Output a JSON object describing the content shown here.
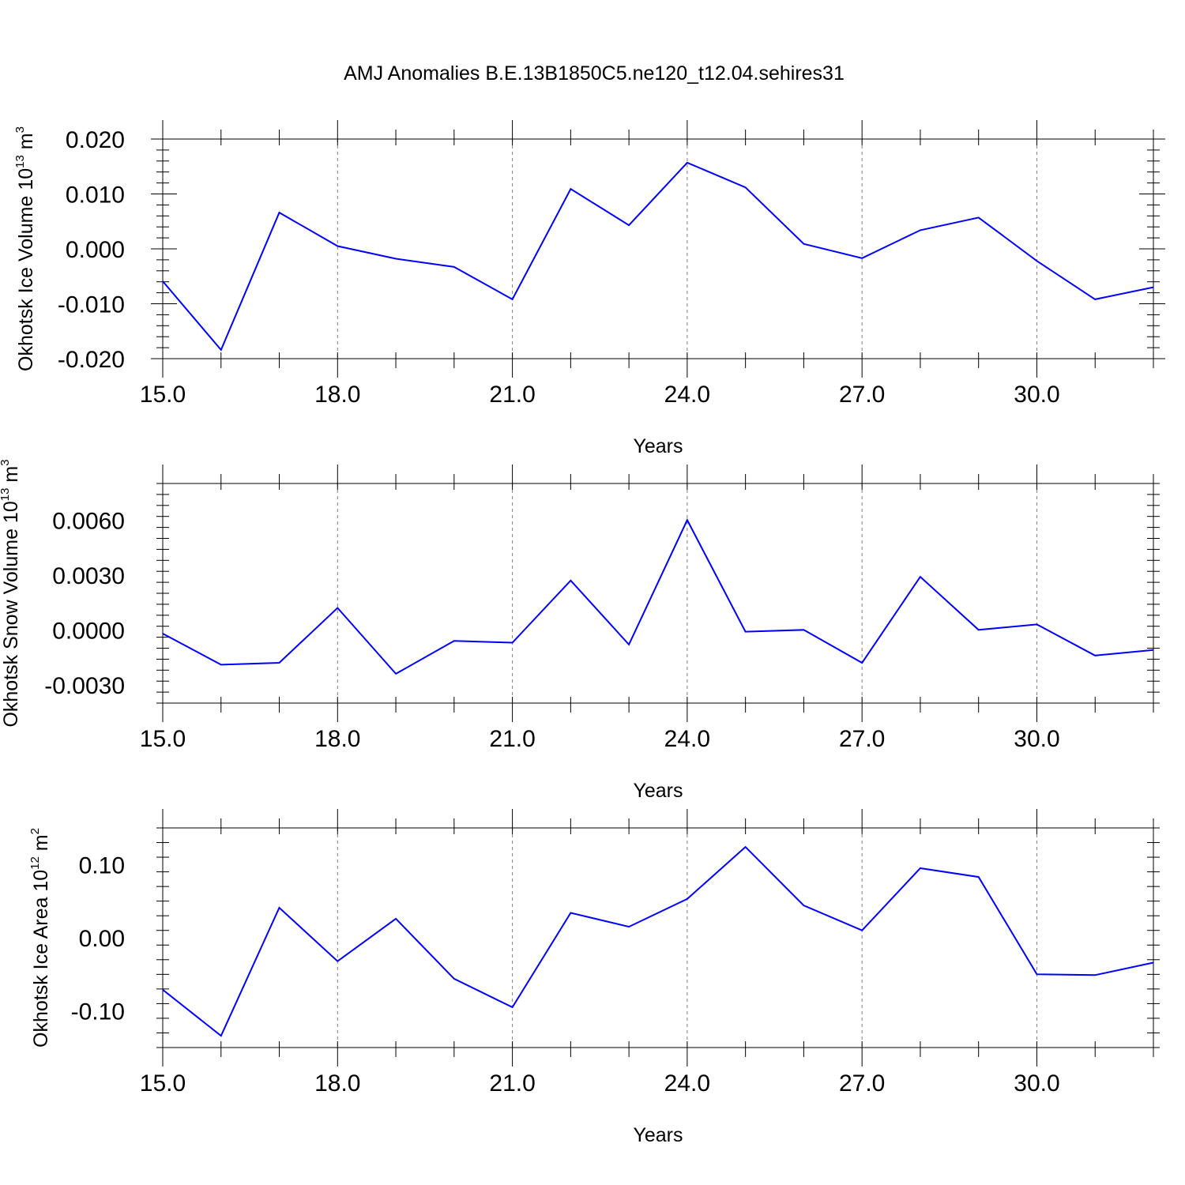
{
  "title": "AMJ Anomalies B.E.13B1850C5.ne120_t12.04.sehires31",
  "colors": {
    "series": "#0000ff",
    "axes": "#000000",
    "grid": "#808080",
    "background": "#ffffff"
  },
  "chart_data": [
    {
      "type": "line",
      "ylabel_main": "Okhotsk Ice Volume 10",
      "ylabel_exp": "13",
      "ylabel_unit": " m",
      "ylabel_unit_exp": "3",
      "xlabel": "Years",
      "xlim": [
        15,
        32
      ],
      "ylim": [
        -0.02,
        0.02
      ],
      "x_ticks": [
        15,
        18,
        21,
        24,
        27,
        30
      ],
      "x_tick_labels": [
        "15.0",
        "18.0",
        "21.0",
        "24.0",
        "27.0",
        "30.0"
      ],
      "y_ticks": [
        -0.02,
        -0.01,
        0.0,
        0.01,
        0.02
      ],
      "y_tick_labels": [
        "-0.020",
        "-0.010",
        "0.000",
        "0.010",
        "0.020"
      ],
      "grid": "vertical dashed at major x ticks",
      "x": [
        15,
        16,
        17,
        18,
        19,
        20,
        21,
        22,
        23,
        24,
        25,
        26,
        27,
        28,
        29,
        30,
        31,
        32
      ],
      "values": [
        -0.0059,
        -0.0184,
        0.0066,
        0.0005,
        -0.0018,
        -0.0033,
        -0.0092,
        0.0109,
        0.0043,
        0.0157,
        0.0112,
        0.0009,
        -0.0017,
        0.0034,
        0.0057,
        -0.0022,
        -0.0092,
        -0.007
      ]
    },
    {
      "type": "line",
      "ylabel_main": "Okhotsk Snow Volume 10",
      "ylabel_exp": "13",
      "ylabel_unit": " m",
      "ylabel_unit_exp": "3",
      "xlabel": "Years",
      "xlim": [
        15,
        32
      ],
      "ylim": [
        -0.004,
        0.008
      ],
      "x_ticks": [
        15,
        18,
        21,
        24,
        27,
        30
      ],
      "x_tick_labels": [
        "15.0",
        "18.0",
        "21.0",
        "24.0",
        "27.0",
        "30.0"
      ],
      "y_ticks": [
        -0.003,
        0.0,
        0.003,
        0.006
      ],
      "y_tick_labels": [
        "-0.0030",
        "0.0000",
        "0.0030",
        "0.0060"
      ],
      "grid": "vertical dashed at major x ticks",
      "x": [
        15,
        16,
        17,
        18,
        19,
        20,
        21,
        22,
        23,
        24,
        25,
        26,
        27,
        28,
        29,
        30,
        31,
        32
      ],
      "values": [
        -0.0002,
        -0.0019,
        -0.0018,
        0.0012,
        -0.0024,
        -0.0006,
        -0.0007,
        0.0027,
        -0.0008,
        0.006,
        -0.0001,
        0.0,
        -0.0018,
        0.0029,
        0.0,
        0.0003,
        -0.0014,
        -0.0011
      ]
    },
    {
      "type": "line",
      "ylabel_main": "Okhotsk Ice Area 10",
      "ylabel_exp": "12",
      "ylabel_unit": " m",
      "ylabel_unit_exp": "2",
      "xlabel": "Years",
      "xlim": [
        15,
        32
      ],
      "ylim": [
        -0.15,
        0.15
      ],
      "x_ticks": [
        15,
        18,
        21,
        24,
        27,
        30
      ],
      "x_tick_labels": [
        "15.0",
        "18.0",
        "21.0",
        "24.0",
        "27.0",
        "30.0"
      ],
      "y_ticks": [
        -0.1,
        0.0,
        0.1
      ],
      "y_tick_labels": [
        "-0.10",
        "0.00",
        "0.10"
      ],
      "grid": "vertical dashed at major x ticks",
      "x": [
        15,
        16,
        17,
        18,
        19,
        20,
        21,
        22,
        23,
        24,
        25,
        26,
        27,
        28,
        29,
        30,
        31,
        32
      ],
      "values": [
        -0.071,
        -0.134,
        0.041,
        -0.032,
        0.026,
        -0.056,
        -0.095,
        0.034,
        0.015,
        0.053,
        0.124,
        0.044,
        0.01,
        0.095,
        0.083,
        -0.05,
        -0.051,
        -0.034
      ]
    }
  ]
}
